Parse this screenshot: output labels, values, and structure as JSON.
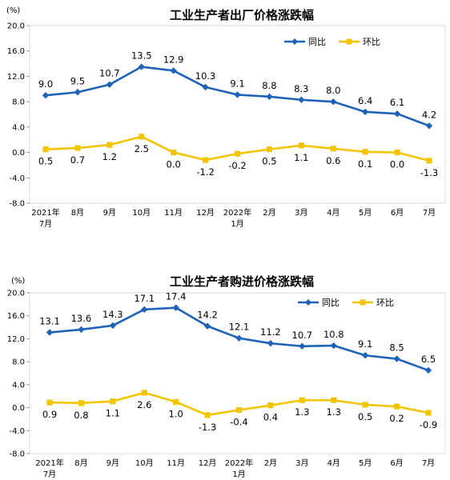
{
  "chart_data": [
    {
      "type": "line",
      "title": "工业生产者出厂价格涨跌幅",
      "unit_label": "(%)",
      "categories": [
        {
          "line1": "2021年",
          "line2": "7月"
        },
        {
          "line1": "8月",
          "line2": ""
        },
        {
          "line1": "9月",
          "line2": ""
        },
        {
          "line1": "10月",
          "line2": ""
        },
        {
          "line1": "11月",
          "line2": ""
        },
        {
          "line1": "12月",
          "line2": ""
        },
        {
          "line1": "2022年",
          "line2": "1月"
        },
        {
          "line1": "2月",
          "line2": ""
        },
        {
          "line1": "3月",
          "line2": ""
        },
        {
          "line1": "4月",
          "line2": ""
        },
        {
          "line1": "5月",
          "line2": ""
        },
        {
          "line1": "6月",
          "line2": ""
        },
        {
          "line1": "7月",
          "line2": ""
        }
      ],
      "ylim": [
        -8.0,
        20.0
      ],
      "yticks": [
        "-8.0",
        "-4.0",
        "0.0",
        "4.0",
        "8.0",
        "12.0",
        "16.0",
        "20.0"
      ],
      "legend_position": "top-right",
      "series": [
        {
          "name": "同比",
          "color": "#1F63B8",
          "marker": "diamond",
          "values": [
            9.0,
            9.5,
            10.7,
            13.5,
            12.9,
            10.3,
            9.1,
            8.8,
            8.3,
            8.0,
            6.4,
            6.1,
            4.2
          ],
          "labels": [
            "9.0",
            "9.5",
            "10.7",
            "13.5",
            "12.9",
            "10.3",
            "9.1",
            "8.8",
            "8.3",
            "8.0",
            "6.4",
            "6.1",
            "4.2"
          ]
        },
        {
          "name": "环比",
          "color": "#F2C500",
          "marker": "square",
          "values": [
            0.5,
            0.7,
            1.2,
            2.5,
            0.0,
            -1.2,
            -0.2,
            0.5,
            1.1,
            0.6,
            0.1,
            0.0,
            -1.3
          ],
          "labels": [
            "0.5",
            "0.7",
            "1.2",
            "2.5",
            "0.0",
            "-1.2",
            "-0.2",
            "0.5",
            "1.1",
            "0.6",
            "0.1",
            "0.0",
            "-1.3"
          ]
        }
      ]
    },
    {
      "type": "line",
      "title": "工业生产者购进价格涨跌幅",
      "unit_label": "(%)",
      "categories": [
        {
          "line1": "2021年",
          "line2": "7月"
        },
        {
          "line1": "8月",
          "line2": ""
        },
        {
          "line1": "9月",
          "line2": ""
        },
        {
          "line1": "10月",
          "line2": ""
        },
        {
          "line1": "11月",
          "line2": ""
        },
        {
          "line1": "12月",
          "line2": ""
        },
        {
          "line1": "2022年",
          "line2": "1月"
        },
        {
          "line1": "2月",
          "line2": ""
        },
        {
          "line1": "3月",
          "line2": ""
        },
        {
          "line1": "4月",
          "line2": ""
        },
        {
          "line1": "5月",
          "line2": ""
        },
        {
          "line1": "6月",
          "line2": ""
        },
        {
          "line1": "7月",
          "line2": ""
        }
      ],
      "ylim": [
        -8.0,
        20.0
      ],
      "yticks": [
        "-8.0",
        "-4.0",
        "0.0",
        "4.0",
        "8.0",
        "12.0",
        "16.0",
        "20.0"
      ],
      "legend_position": "top-right",
      "series": [
        {
          "name": "同比",
          "color": "#1F63B8",
          "marker": "diamond",
          "values": [
            13.1,
            13.6,
            14.3,
            17.1,
            17.4,
            14.2,
            12.1,
            11.2,
            10.7,
            10.8,
            9.1,
            8.5,
            6.5
          ],
          "labels": [
            "13.1",
            "13.6",
            "14.3",
            "17.1",
            "17.4",
            "14.2",
            "12.1",
            "11.2",
            "10.7",
            "10.8",
            "9.1",
            "8.5",
            "6.5"
          ]
        },
        {
          "name": "环比",
          "color": "#F2C500",
          "marker": "square",
          "values": [
            0.9,
            0.8,
            1.1,
            2.6,
            1.0,
            -1.3,
            -0.4,
            0.4,
            1.3,
            1.3,
            0.5,
            0.2,
            -0.9
          ],
          "labels": [
            "0.9",
            "0.8",
            "1.1",
            "2.6",
            "1.0",
            "-1.3",
            "-0.4",
            "0.4",
            "1.3",
            "1.3",
            "0.5",
            "0.2",
            "-0.9"
          ]
        }
      ]
    }
  ]
}
